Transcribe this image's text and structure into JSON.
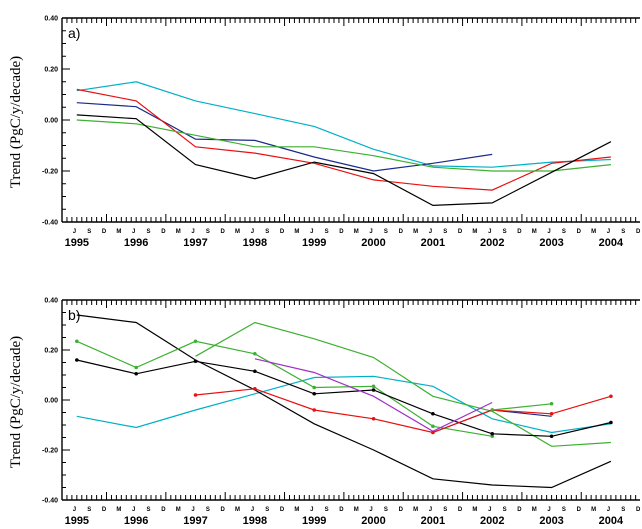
{
  "chart_data": [
    {
      "type": "line",
      "panel_label": "a)",
      "ylabel": "Trend (PgC/y/decade)",
      "ylim": [
        -0.4,
        0.4
      ],
      "yticks": [
        "0.40",
        "0.20",
        "0.00",
        "-0.20",
        "-0.40"
      ],
      "month_labels": [
        "M",
        "J",
        "S",
        "D"
      ],
      "years": [
        "1995",
        "1996",
        "1997",
        "1998",
        "1999",
        "2000",
        "2001",
        "2002",
        "2003",
        "2004"
      ],
      "x_unit": "decimal year",
      "series": [
        {
          "color": "#00b0c8",
          "x": [
            1995.5,
            1996.5,
            1997.5,
            1998.5,
            1999.5,
            2000.5,
            2001.5,
            2002.5,
            2003.5,
            2004.5
          ],
          "values": [
            0.115,
            0.15,
            0.075,
            0.025,
            -0.025,
            -0.115,
            -0.18,
            -0.185,
            -0.165,
            -0.155
          ]
        },
        {
          "color": "#1a2a8c",
          "x": [
            1995.5,
            1996.5,
            1997.5,
            1998.5,
            1999.5,
            2000.5,
            2001.5,
            2002.5
          ],
          "values": [
            0.068,
            0.052,
            -0.075,
            -0.08,
            -0.145,
            -0.2,
            -0.17,
            -0.135
          ]
        },
        {
          "color": "#e81010",
          "x": [
            1995.5,
            1996.5,
            1997.5,
            1998.5,
            1999.5,
            2000.5,
            2001.5,
            2002.5,
            2003.5,
            2004.5
          ],
          "values": [
            0.12,
            0.075,
            -0.105,
            -0.13,
            -0.17,
            -0.235,
            -0.26,
            -0.275,
            -0.17,
            -0.145
          ]
        },
        {
          "color": "#3cb030",
          "x": [
            1995.5,
            1996.5,
            1997.5,
            1998.5,
            1999.5,
            2000.5,
            2001.5,
            2002.5,
            2003.5,
            2004.5
          ],
          "values": [
            0.0,
            -0.015,
            -0.06,
            -0.105,
            -0.105,
            -0.14,
            -0.185,
            -0.2,
            -0.2,
            -0.175
          ]
        },
        {
          "color": "#000000",
          "x": [
            1995.5,
            1996.5,
            1997.5,
            1998.5,
            1999.5,
            2000.5,
            2001.5,
            2002.5,
            2003.5,
            2004.5
          ],
          "values": [
            0.02,
            0.005,
            -0.175,
            -0.23,
            -0.165,
            -0.21,
            -0.335,
            -0.325,
            -0.205,
            -0.085
          ]
        }
      ]
    },
    {
      "type": "line",
      "panel_label": "b)",
      "ylabel": "Trend (PgC/y/decade)",
      "ylim": [
        -0.4,
        0.4
      ],
      "yticks": [
        "0.40",
        "0.20",
        "0.00",
        "-0.20",
        "-0.40"
      ],
      "month_labels": [
        "M",
        "J",
        "S",
        "D"
      ],
      "years": [
        "1995",
        "1996",
        "1997",
        "1998",
        "1999",
        "2000",
        "2001",
        "2002",
        "2003",
        "2004"
      ],
      "x_unit": "decimal year",
      "series": [
        {
          "color": "#00b0c8",
          "markers": false,
          "x": [
            1995.5,
            1996.5,
            1997.5,
            1998.5,
            1999.5,
            2000.5,
            2001.5,
            2002.5,
            2003.5,
            2004.5
          ],
          "values": [
            -0.065,
            -0.11,
            -0.04,
            0.025,
            0.09,
            0.095,
            0.055,
            -0.075,
            -0.13,
            -0.095
          ]
        },
        {
          "color": "#000000",
          "markers": false,
          "x": [
            1995.5,
            1996.5,
            1997.5,
            1998.5,
            1999.5,
            2000.5,
            2001.5,
            2002.5,
            2003.5,
            2004.5
          ],
          "values": [
            0.34,
            0.31,
            0.16,
            0.04,
            -0.095,
            -0.2,
            -0.315,
            -0.34,
            -0.35,
            -0.245
          ]
        },
        {
          "color": "#3cb030",
          "markers": false,
          "x": [
            1997.5,
            1998.5,
            1999.5,
            2000.5,
            2001.5,
            2002.5,
            2003.5,
            2004.5
          ],
          "values": [
            0.175,
            0.31,
            0.245,
            0.17,
            0.015,
            -0.045,
            -0.185,
            -0.17
          ]
        },
        {
          "color": "#3cb030",
          "markers": true,
          "x": [
            1995.5,
            1996.5,
            1997.5,
            1998.5,
            1999.5,
            2000.5,
            2001.5,
            2002.5
          ],
          "values": [
            0.235,
            0.13,
            0.235,
            0.185,
            0.05,
            0.055,
            -0.105,
            -0.145
          ]
        },
        {
          "color": "#000000",
          "markers": true,
          "x": [
            1995.5,
            1996.5,
            1997.5,
            1998.5,
            1999.5,
            2000.5,
            2001.5,
            2002.5,
            2003.5,
            2004.5
          ],
          "values": [
            0.16,
            0.105,
            0.155,
            0.115,
            0.025,
            0.04,
            -0.055,
            -0.135,
            -0.145,
            -0.09
          ]
        },
        {
          "color": "#a030c8",
          "markers": false,
          "x": [
            1998.5,
            1999.5,
            2000.5,
            2001.5,
            2002.5
          ],
          "values": [
            0.165,
            0.11,
            0.015,
            -0.125,
            -0.01
          ]
        },
        {
          "color": "#1a2a8c",
          "markers": false,
          "x": [
            2001.5,
            2002.5,
            2003.5
          ],
          "values": [
            -0.13,
            -0.04,
            -0.065
          ]
        },
        {
          "color": "#e81010",
          "markers": true,
          "x": [
            1997.5,
            1998.5,
            1999.5,
            2000.5,
            2001.5,
            2002.5,
            2003.5,
            2004.5
          ],
          "values": [
            0.02,
            0.045,
            -0.04,
            -0.075,
            -0.13,
            -0.04,
            -0.055,
            0.015
          ]
        },
        {
          "color": "#3cb030",
          "markers": true,
          "x": [
            2002.5,
            2003.5
          ],
          "values": [
            -0.04,
            -0.015
          ]
        }
      ]
    }
  ]
}
